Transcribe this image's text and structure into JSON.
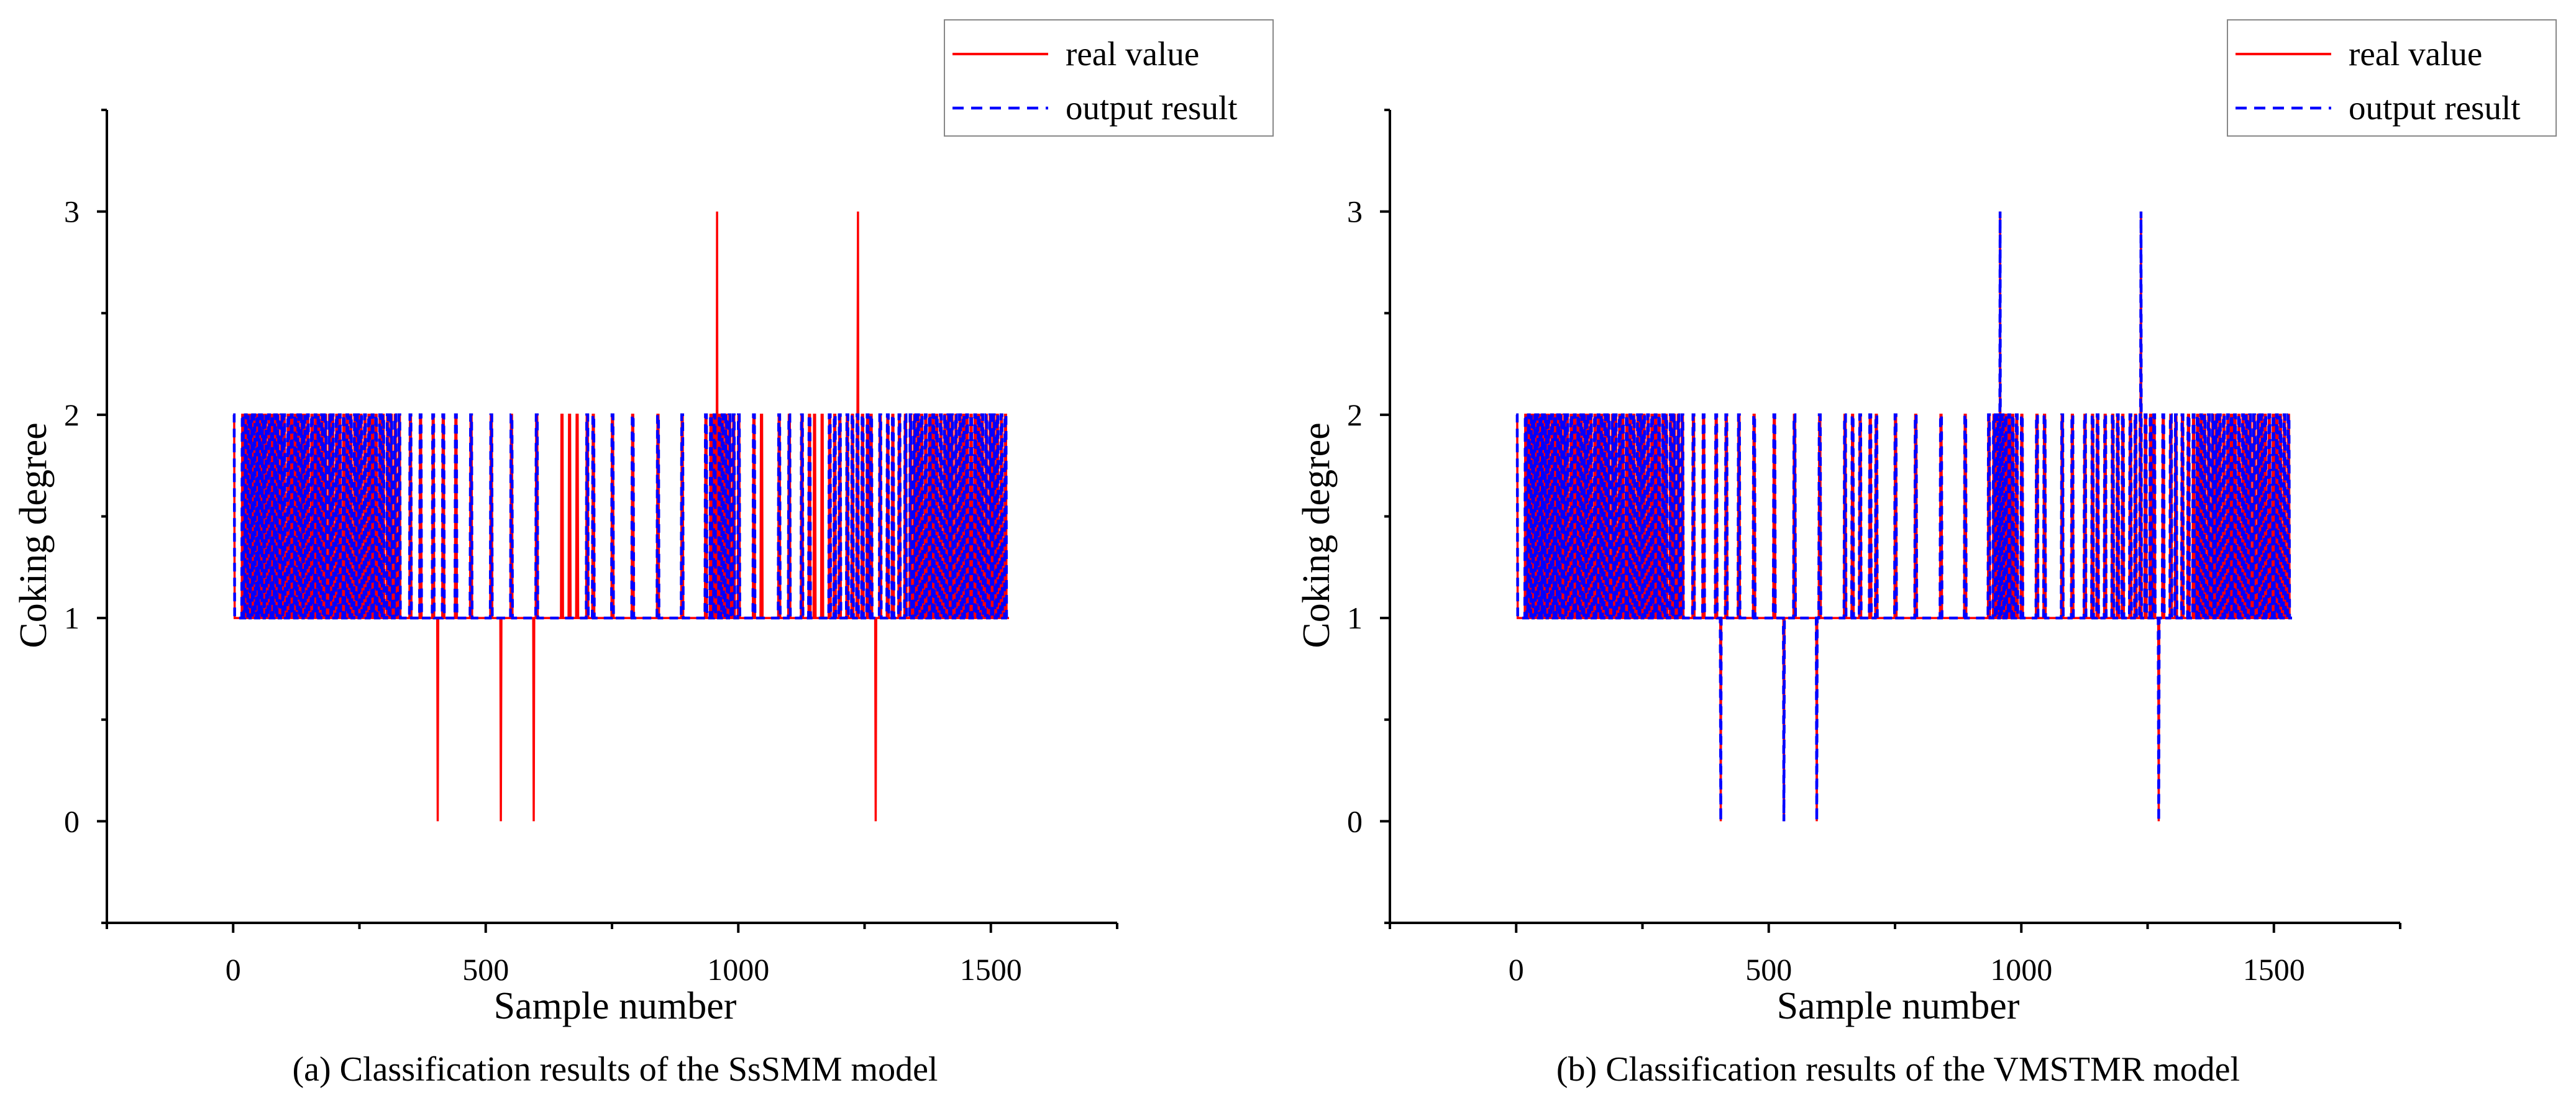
{
  "colors": {
    "real": "#ff0000",
    "output": "#0000ff",
    "axis": "#000000"
  },
  "chart_data": [
    {
      "type": "line",
      "caption": "(a) Classification results of the SsSMM model",
      "xlabel": "Sample number",
      "ylabel": "Coking degree",
      "xlim": [
        -250,
        1750
      ],
      "ylim": [
        -0.5,
        3.5
      ],
      "xticks": [
        0,
        500,
        1000,
        1500
      ],
      "xtick_labels": [
        "0",
        "500",
        "1000",
        "1500"
      ],
      "yticks": [
        0,
        1,
        2,
        3
      ],
      "ytick_labels": [
        "0",
        "1",
        "2",
        "3"
      ],
      "grid": false,
      "legend": {
        "position": "top-right",
        "entries": [
          "real value",
          "output result"
        ]
      },
      "n_samples": 1536,
      "baseline_value": 1,
      "pulse_value": 2,
      "series": [
        {
          "name": "real value",
          "style": "solid",
          "pulses_at_2": [
            0,
            18,
            24,
            30,
            35,
            41,
            47,
            52,
            58,
            63,
            70,
            76,
            82,
            88,
            95,
            100,
            108,
            115,
            122,
            128,
            135,
            140,
            147,
            155,
            162,
            168,
            175,
            182,
            190,
            196,
            204,
            210,
            218,
            225,
            232,
            240,
            246,
            252,
            260,
            268,
            275,
            282,
            290,
            296,
            305,
            312,
            320,
            328,
            350,
            370,
            395,
            415,
            440,
            470,
            510,
            550,
            600,
            650,
            665,
            680,
            700,
            712,
            750,
            790,
            840,
            888,
            935,
            945,
            952,
            962,
            968,
            975,
            982,
            990,
            1000,
            1030,
            1045,
            1080,
            1100,
            1125,
            1140,
            1150,
            1165,
            1180,
            1190,
            1200,
            1215,
            1225,
            1235,
            1245,
            1255,
            1262,
            1280,
            1295,
            1305,
            1318,
            1330,
            1340,
            1348,
            1355,
            1362,
            1370,
            1378,
            1385,
            1392,
            1400,
            1408,
            1415,
            1422,
            1430,
            1438,
            1445,
            1452,
            1460,
            1468,
            1475,
            1482,
            1490,
            1498,
            1505,
            1512,
            1520,
            1528
          ],
          "spikes": [
            {
              "x": 405,
              "y": 0
            },
            {
              "x": 530,
              "y": 0
            },
            {
              "x": 595,
              "y": 0
            },
            {
              "x": 1272,
              "y": 0
            },
            {
              "x": 958,
              "y": 3
            },
            {
              "x": 1237,
              "y": 3
            }
          ]
        },
        {
          "name": "output result",
          "style": "dashed",
          "pulses_at_2": [
            0,
            18,
            24,
            30,
            35,
            41,
            47,
            52,
            58,
            63,
            70,
            76,
            82,
            88,
            95,
            100,
            108,
            115,
            122,
            128,
            135,
            140,
            147,
            155,
            162,
            168,
            175,
            182,
            190,
            196,
            204,
            210,
            218,
            225,
            232,
            240,
            246,
            252,
            260,
            268,
            275,
            282,
            290,
            296,
            305,
            312,
            320,
            328,
            350,
            370,
            395,
            415,
            440,
            470,
            510,
            550,
            600,
            700,
            712,
            750,
            790,
            840,
            888,
            935,
            945,
            952,
            962,
            968,
            975,
            982,
            990,
            1000,
            1030,
            1080,
            1100,
            1125,
            1140,
            1180,
            1190,
            1200,
            1215,
            1225,
            1235,
            1245,
            1255,
            1262,
            1280,
            1295,
            1305,
            1318,
            1330,
            1340,
            1348,
            1355,
            1362,
            1370,
            1378,
            1385,
            1392,
            1400,
            1408,
            1415,
            1422,
            1430,
            1438,
            1445,
            1452,
            1460,
            1468,
            1475,
            1482,
            1490,
            1498,
            1505,
            1512,
            1520,
            1528
          ],
          "spikes": []
        }
      ]
    },
    {
      "type": "line",
      "caption": "(b) Classification results of the VMSTMR model",
      "xlabel": "Sample number",
      "ylabel": "Coking degree",
      "xlim": [
        -250,
        1750
      ],
      "ylim": [
        -0.5,
        3.5
      ],
      "xticks": [
        0,
        500,
        1000,
        1500
      ],
      "xtick_labels": [
        "0",
        "500",
        "1000",
        "1500"
      ],
      "yticks": [
        0,
        1,
        2,
        3
      ],
      "ytick_labels": [
        "0",
        "1",
        "2",
        "3"
      ],
      "grid": false,
      "legend": {
        "position": "top-right",
        "entries": [
          "real value",
          "output result"
        ]
      },
      "n_samples": 1536,
      "baseline_value": 1,
      "pulse_value": 2,
      "series": [
        {
          "name": "real value",
          "style": "solid",
          "pulses_at_2": [
            0,
            18,
            24,
            30,
            35,
            41,
            47,
            52,
            58,
            63,
            70,
            76,
            82,
            88,
            95,
            100,
            108,
            115,
            122,
            128,
            135,
            140,
            147,
            155,
            162,
            168,
            175,
            182,
            190,
            196,
            204,
            210,
            218,
            225,
            232,
            240,
            246,
            252,
            260,
            268,
            275,
            282,
            290,
            296,
            305,
            312,
            320,
            328,
            350,
            370,
            395,
            415,
            440,
            470,
            510,
            550,
            600,
            650,
            665,
            680,
            700,
            712,
            750,
            790,
            840,
            888,
            935,
            945,
            952,
            962,
            968,
            975,
            982,
            990,
            1000,
            1030,
            1045,
            1080,
            1100,
            1125,
            1140,
            1150,
            1165,
            1180,
            1190,
            1200,
            1215,
            1225,
            1235,
            1245,
            1255,
            1262,
            1280,
            1295,
            1305,
            1318,
            1330,
            1340,
            1348,
            1355,
            1362,
            1370,
            1378,
            1385,
            1392,
            1400,
            1408,
            1415,
            1422,
            1430,
            1438,
            1445,
            1452,
            1460,
            1468,
            1475,
            1482,
            1490,
            1498,
            1505,
            1512,
            1520,
            1528
          ],
          "spikes": [
            {
              "x": 405,
              "y": 0
            },
            {
              "x": 530,
              "y": 0
            },
            {
              "x": 595,
              "y": 0
            },
            {
              "x": 1272,
              "y": 0
            },
            {
              "x": 958,
              "y": 3
            },
            {
              "x": 1237,
              "y": 3
            }
          ]
        },
        {
          "name": "output result",
          "style": "dashed",
          "pulses_at_2": [
            0,
            18,
            24,
            30,
            35,
            41,
            47,
            52,
            58,
            63,
            70,
            76,
            82,
            88,
            95,
            100,
            108,
            115,
            122,
            128,
            135,
            140,
            147,
            155,
            162,
            168,
            175,
            182,
            190,
            196,
            204,
            210,
            218,
            225,
            232,
            240,
            246,
            252,
            260,
            268,
            275,
            282,
            290,
            296,
            305,
            312,
            320,
            328,
            350,
            370,
            395,
            415,
            440,
            470,
            510,
            550,
            600,
            650,
            665,
            680,
            700,
            712,
            750,
            790,
            840,
            888,
            935,
            945,
            952,
            962,
            968,
            975,
            982,
            990,
            1000,
            1030,
            1045,
            1080,
            1100,
            1125,
            1140,
            1150,
            1165,
            1180,
            1190,
            1200,
            1215,
            1225,
            1235,
            1245,
            1255,
            1262,
            1280,
            1295,
            1305,
            1318,
            1330,
            1340,
            1348,
            1355,
            1362,
            1370,
            1378,
            1385,
            1392,
            1400,
            1408,
            1415,
            1422,
            1430,
            1438,
            1445,
            1452,
            1460,
            1468,
            1475,
            1482,
            1490,
            1498,
            1505,
            1512,
            1520,
            1528
          ],
          "spikes": [
            {
              "x": 405,
              "y": 0
            },
            {
              "x": 530,
              "y": 0
            },
            {
              "x": 595,
              "y": 0
            },
            {
              "x": 1272,
              "y": 0
            },
            {
              "x": 958,
              "y": 3
            },
            {
              "x": 1237,
              "y": 3
            }
          ]
        }
      ]
    }
  ]
}
